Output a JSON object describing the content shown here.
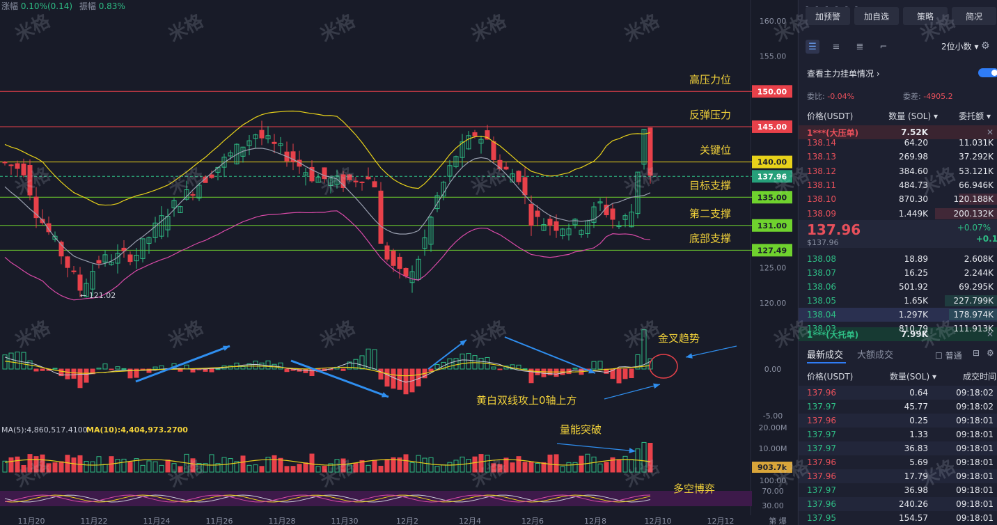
{
  "stats": {
    "change_label": "涨幅",
    "change_value": "0.10%(0.14)",
    "amp_label": "振幅",
    "amp_value": "0.83%"
  },
  "watermark": "米格",
  "price_axis": [
    "160.00",
    "155.00",
    "150.00",
    "145.00",
    "140.00",
    "137.96",
    "135.00",
    "131.00",
    "127.49",
    "125.00",
    "120.00"
  ],
  "macd_axis": [
    "0.00",
    "-5.00"
  ],
  "vol_axis": [
    "20.00M",
    "10.00M",
    "903.7k"
  ],
  "kdj_axis": [
    "100.00",
    "70.00",
    "30.00"
  ],
  "date_axis": [
    "11月20",
    "11月22",
    "11月24",
    "11月26",
    "11月28",
    "11月30",
    "12月2",
    "12月4",
    "12月6",
    "12月8",
    "12月10",
    "12月12"
  ],
  "date_axis_tail": "第 爆",
  "levels": [
    {
      "label": "高压力位",
      "price": "150.00",
      "color": "#e8414a"
    },
    {
      "label": "反弹压力",
      "price": "145.00",
      "color": "#e8414a"
    },
    {
      "label": "关键位",
      "price": "140.00",
      "color": "#e8d21a"
    },
    {
      "label": "目标支撑",
      "price": "135.00",
      "color": "#6fd22e"
    },
    {
      "label": "第二支撑",
      "price": "131.00",
      "color": "#6fd22e"
    },
    {
      "label": "底部支撑",
      "price": "127.49",
      "color": "#6fd22e"
    }
  ],
  "current_price_tag": "137.96",
  "low_marker": "← 121.02",
  "annotations": {
    "golden_cross": "金叉趋势",
    "macd_note": "黄白双线攻上0轴上方",
    "volume_note": "量能突破",
    "kdj_note": "多空博弈"
  },
  "ma_volume": {
    "ma5": "MA(5):4,860,517.4100",
    "ma10": "MA(10):4,404,973.2700"
  },
  "side": {
    "buttons": [
      "加预警",
      "加自选",
      "策略",
      "简况"
    ],
    "decimal": "2位小数",
    "orderbook_title": "查看主力挂单情况",
    "ratio_label": "委比:",
    "ratio_value": "-0.04%",
    "diff_label": "委差:",
    "diff_value": "-4905.2",
    "headers": [
      "价格(USDT)",
      "数量 (SOL)",
      "委托额"
    ],
    "big_ask_label": "1***(大压单)",
    "big_ask_value": "7.52K",
    "asks": [
      {
        "price": "138.14",
        "qty": "64.20",
        "amt": "11.031K"
      },
      {
        "price": "138.13",
        "qty": "269.98",
        "amt": "37.292K"
      },
      {
        "price": "138.12",
        "qty": "384.60",
        "amt": "53.121K"
      },
      {
        "price": "138.11",
        "qty": "484.73",
        "amt": "66.946K"
      },
      {
        "price": "138.10",
        "qty": "870.30",
        "amt": "120.188K"
      },
      {
        "price": "138.09",
        "qty": "1.449K",
        "amt": "200.132K"
      }
    ],
    "last_price": "137.96",
    "last_price_sub": "$137.96",
    "last_change": "+0.07%",
    "last_change_abs": "+0.1",
    "bids": [
      {
        "price": "138.08",
        "qty": "18.89",
        "amt": "2.608K"
      },
      {
        "price": "138.07",
        "qty": "16.25",
        "amt": "2.244K"
      },
      {
        "price": "138.06",
        "qty": "501.92",
        "amt": "69.295K"
      },
      {
        "price": "138.05",
        "qty": "1.65K",
        "amt": "227.799K"
      },
      {
        "price": "138.04",
        "qty": "1.297K",
        "amt": "178.974K"
      },
      {
        "price": "138.03",
        "qty": "810.79",
        "amt": "111.913K"
      }
    ],
    "big_bid_label": "1***(大托单)",
    "big_bid_value": "7.99K",
    "trade_tabs": [
      "最新成交",
      "大额成交"
    ],
    "normal_label": "普通",
    "trade_headers": [
      "价格(USDT)",
      "数量(SOL)",
      "成交时间"
    ],
    "trades": [
      {
        "price": "137.96",
        "qty": "0.64",
        "time": "09:18:02",
        "side": "sell"
      },
      {
        "price": "137.97",
        "qty": "45.77",
        "time": "09:18:02",
        "side": "buy"
      },
      {
        "price": "137.96",
        "qty": "0.25",
        "time": "09:18:01",
        "side": "sell"
      },
      {
        "price": "137.97",
        "qty": "1.33",
        "time": "09:18:01",
        "side": "buy"
      },
      {
        "price": "137.97",
        "qty": "36.83",
        "time": "09:18:01",
        "side": "buy"
      },
      {
        "price": "137.96",
        "qty": "5.69",
        "time": "09:18:01",
        "side": "sell"
      },
      {
        "price": "137.96",
        "qty": "17.79",
        "time": "09:18:01",
        "side": "sell"
      },
      {
        "price": "137.97",
        "qty": "36.98",
        "time": "09:18:01",
        "side": "buy"
      },
      {
        "price": "137.96",
        "qty": "240.26",
        "time": "09:18:01",
        "side": "buy"
      },
      {
        "price": "137.95",
        "qty": "154.57",
        "time": "09:18:01",
        "side": "buy"
      }
    ]
  }
}
